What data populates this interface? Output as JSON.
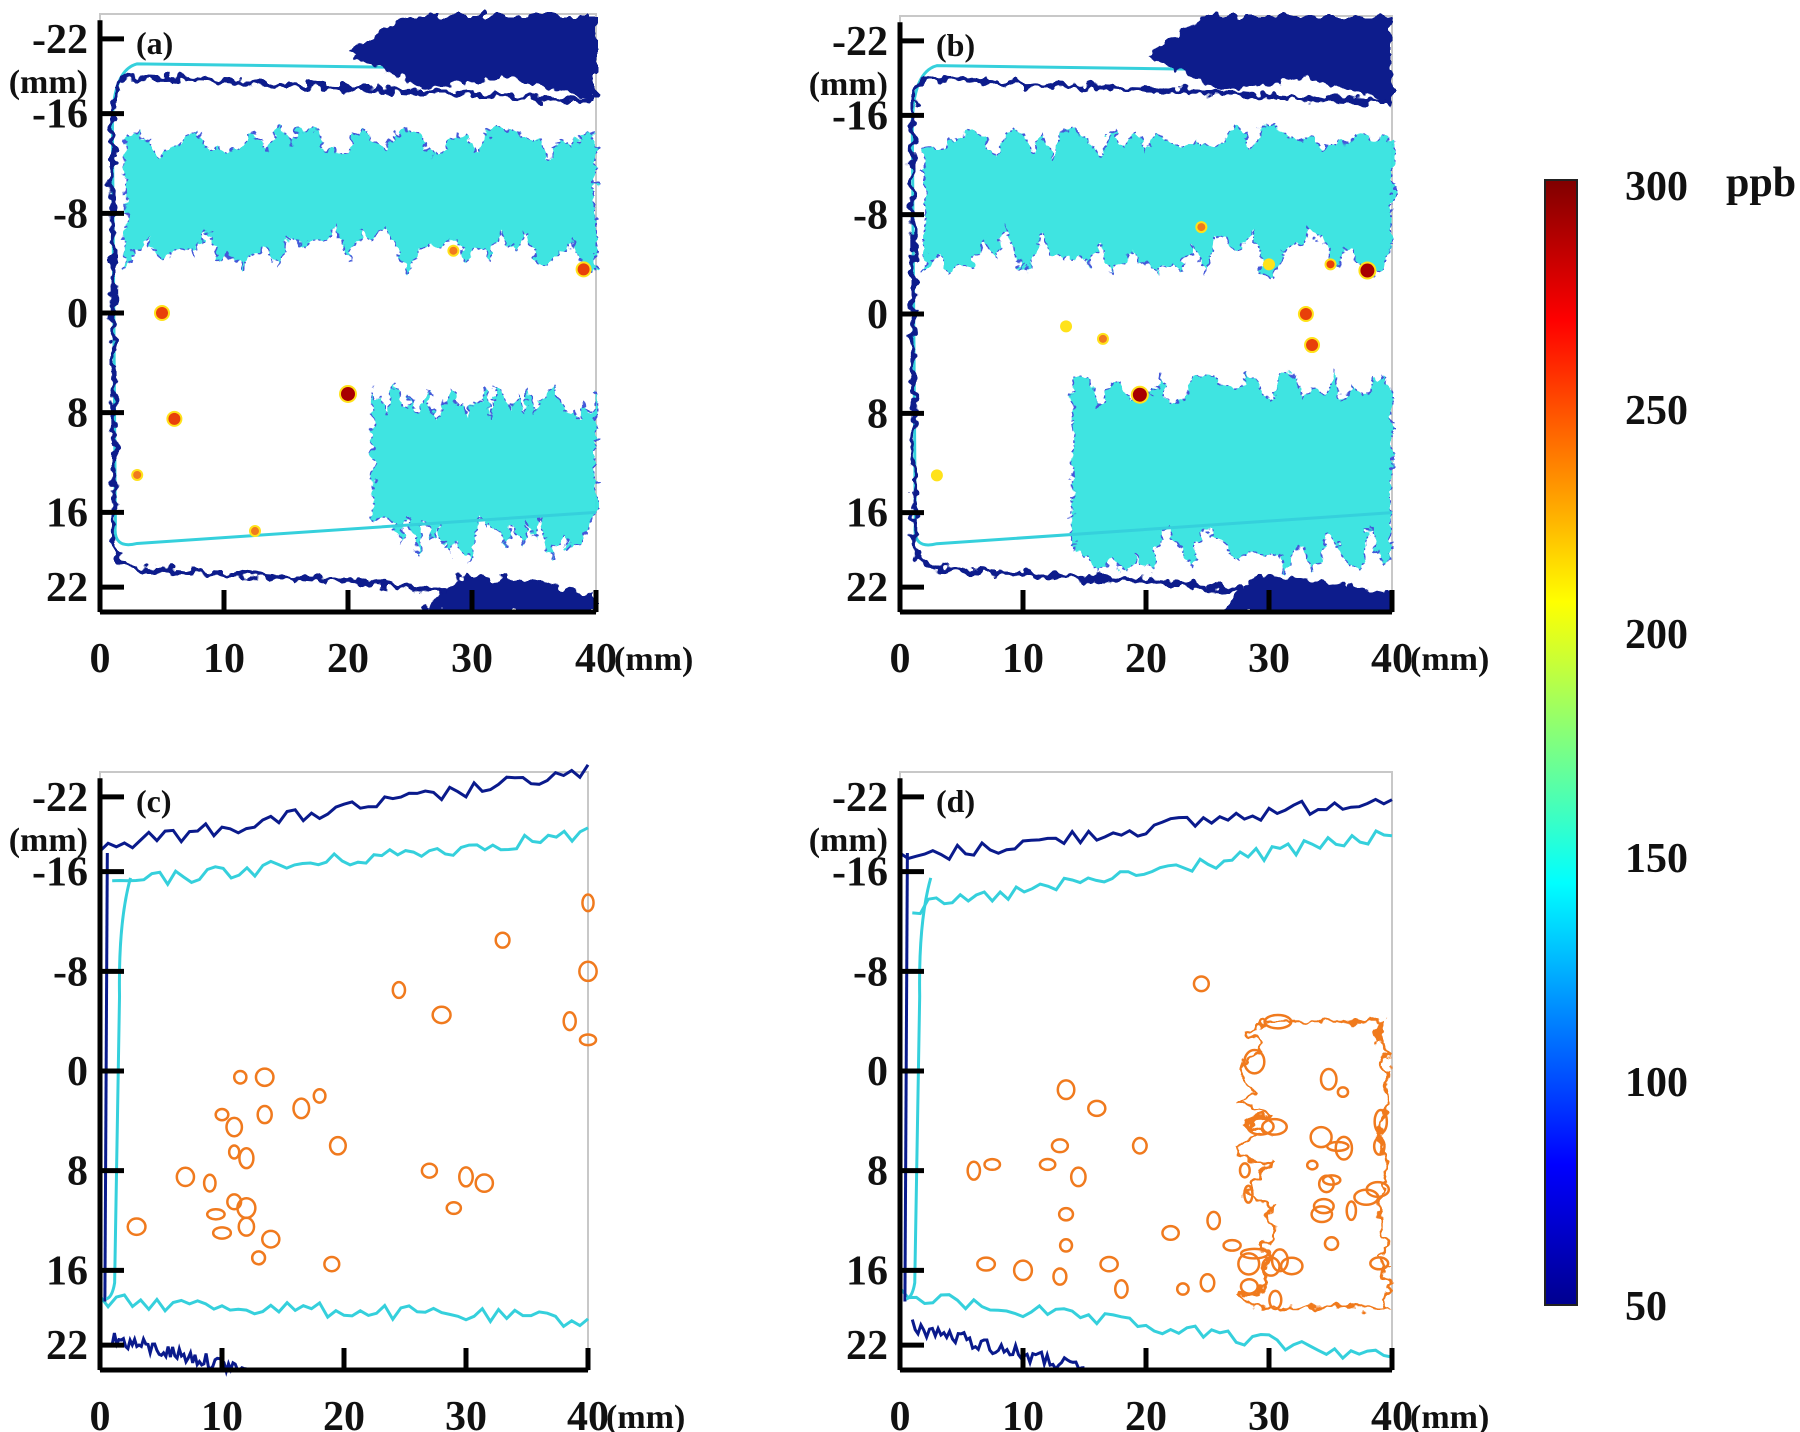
{
  "chart_data": [
    {
      "panel": "(a)",
      "type": "heatmap",
      "xlabel_unit": "(mm)",
      "ylabel_unit": "(mm)",
      "x_ticks": [
        0,
        10,
        20,
        30,
        40
      ],
      "y_ticks": [
        -22,
        -16,
        -8,
        0,
        8,
        16,
        22
      ],
      "xlim": [
        0,
        40
      ],
      "ylim": [
        -24,
        24
      ],
      "y_direction": "down",
      "regions": [
        {
          "band": "boundary",
          "level": 50,
          "x": [
            1,
            40
          ],
          "y": [
            -22,
            22
          ]
        },
        {
          "band": "upper",
          "level": 150,
          "x": [
            2,
            40
          ],
          "y_from": -14,
          "y_to": -5
        },
        {
          "band": "lower",
          "level": 150,
          "x": [
            22,
            40
          ],
          "y_from": 7,
          "y_to": 18
        }
      ],
      "hotspots": [
        {
          "x": 5,
          "y": 0,
          "value": 260
        },
        {
          "x": 6,
          "y": 8.5,
          "value": 270
        },
        {
          "x": 20,
          "y": 6.5,
          "value": 290
        },
        {
          "x": 39,
          "y": -3.5,
          "value": 260
        },
        {
          "x": 28.5,
          "y": -5,
          "value": 250
        },
        {
          "x": 12.5,
          "y": 17.5,
          "value": 250
        },
        {
          "x": 3,
          "y": 13,
          "value": 250
        }
      ]
    },
    {
      "panel": "(b)",
      "type": "heatmap",
      "xlabel_unit": "(mm)",
      "ylabel_unit": "(mm)",
      "x_ticks": [
        0,
        10,
        20,
        30,
        40
      ],
      "y_ticks": [
        -22,
        -16,
        -8,
        0,
        8,
        16,
        22
      ],
      "xlim": [
        0,
        40
      ],
      "ylim": [
        -24,
        24
      ],
      "y_direction": "down",
      "regions": [
        {
          "band": "boundary",
          "level": 50,
          "x": [
            1,
            40
          ],
          "y": [
            -22,
            22
          ]
        },
        {
          "band": "upper",
          "level": 150,
          "x": [
            2,
            40
          ],
          "y_from": -14,
          "y_to": -5
        },
        {
          "band": "lower",
          "level": 150,
          "x": [
            14,
            40
          ],
          "y_from": 6,
          "y_to": 19
        }
      ],
      "hotspots": [
        {
          "x": 19.5,
          "y": 6.5,
          "value": 290
        },
        {
          "x": 33,
          "y": 0,
          "value": 265
        },
        {
          "x": 33.5,
          "y": 2.5,
          "value": 270
        },
        {
          "x": 35,
          "y": -4,
          "value": 255
        },
        {
          "x": 38,
          "y": -3.5,
          "value": 285
        },
        {
          "x": 30,
          "y": -4,
          "value": 240
        },
        {
          "x": 24.5,
          "y": -7,
          "value": 250
        },
        {
          "x": 16.5,
          "y": 2,
          "value": 250
        },
        {
          "x": 13.5,
          "y": 1,
          "value": 240
        },
        {
          "x": 3,
          "y": 13,
          "value": 240
        }
      ]
    },
    {
      "panel": "(c)",
      "type": "contour",
      "xlabel_unit": "(mm)",
      "ylabel_unit": "(mm)",
      "x_ticks": [
        0,
        10,
        20,
        30,
        40
      ],
      "y_ticks": [
        -22,
        -16,
        -8,
        0,
        8,
        16,
        22
      ],
      "xlim": [
        0,
        40
      ],
      "ylim": [
        -24,
        24
      ],
      "y_direction": "down",
      "contours": [
        {
          "level": 50,
          "line": "upper",
          "x": [
            0,
            40
          ],
          "y_start": -18,
          "y_end": -24
        },
        {
          "level": 150,
          "line": "upper",
          "x": [
            1,
            40
          ],
          "y_start": -15,
          "y_end": -19
        },
        {
          "level": 150,
          "line": "lower",
          "x": [
            0,
            40
          ],
          "y_start": 18.5,
          "y_end": 20
        },
        {
          "level": 50,
          "line": "lower",
          "x": [
            1,
            12
          ],
          "y_start": 21.5,
          "y_end": 24
        }
      ],
      "hotspots": [
        {
          "x": 11.5,
          "y": 0.5,
          "value": 240
        },
        {
          "x": 13.5,
          "y": 0.5,
          "value": 240
        },
        {
          "x": 10,
          "y": 3.5,
          "value": 240
        },
        {
          "x": 11,
          "y": 4.5,
          "value": 240
        },
        {
          "x": 13.5,
          "y": 3.5,
          "value": 240
        },
        {
          "x": 11,
          "y": 6.5,
          "value": 240
        },
        {
          "x": 12,
          "y": 7,
          "value": 240
        },
        {
          "x": 7,
          "y": 8.5,
          "value": 240
        },
        {
          "x": 9,
          "y": 9,
          "value": 240
        },
        {
          "x": 11,
          "y": 10.5,
          "value": 240
        },
        {
          "x": 12,
          "y": 11,
          "value": 240
        },
        {
          "x": 9.5,
          "y": 11.5,
          "value": 240
        },
        {
          "x": 10,
          "y": 13,
          "value": 240
        },
        {
          "x": 12,
          "y": 12.5,
          "value": 240
        },
        {
          "x": 14,
          "y": 13.5,
          "value": 240
        },
        {
          "x": 13,
          "y": 15,
          "value": 240
        },
        {
          "x": 3,
          "y": 12.5,
          "value": 240
        },
        {
          "x": 19.5,
          "y": 6,
          "value": 240
        },
        {
          "x": 18,
          "y": 2,
          "value": 240
        },
        {
          "x": 16.5,
          "y": 3,
          "value": 240
        },
        {
          "x": 27,
          "y": 8,
          "value": 240
        },
        {
          "x": 30,
          "y": 8.5,
          "value": 240
        },
        {
          "x": 31.5,
          "y": 9,
          "value": 240
        },
        {
          "x": 29,
          "y": 11,
          "value": 240
        },
        {
          "x": 28,
          "y": -4.5,
          "value": 240
        },
        {
          "x": 33,
          "y": -10.5,
          "value": 240
        },
        {
          "x": 40,
          "y": -13.5,
          "value": 240
        },
        {
          "x": 40,
          "y": -8,
          "value": 240
        },
        {
          "x": 38.5,
          "y": -4,
          "value": 240
        },
        {
          "x": 40,
          "y": -2.5,
          "value": 240
        },
        {
          "x": 24.5,
          "y": -6.5,
          "value": 240
        },
        {
          "x": 19,
          "y": 15.5,
          "value": 240
        }
      ]
    },
    {
      "panel": "(d)",
      "type": "contour",
      "xlabel_unit": "(mm)",
      "ylabel_unit": "(mm)",
      "x_ticks": [
        0,
        10,
        20,
        30,
        40
      ],
      "y_ticks": [
        -22,
        -16,
        -8,
        0,
        8,
        16,
        22
      ],
      "xlim": [
        0,
        40
      ],
      "ylim": [
        -24,
        24
      ],
      "y_direction": "down",
      "contours": [
        {
          "level": 50,
          "line": "upper",
          "x": [
            0,
            40
          ],
          "y_start": -17,
          "y_end": -22
        },
        {
          "level": 150,
          "line": "upper",
          "x": [
            1,
            40
          ],
          "y_start": -13,
          "y_end": -19
        },
        {
          "level": 150,
          "line": "lower",
          "x": [
            0,
            40
          ],
          "y_start": 18,
          "y_end": 23
        },
        {
          "level": 50,
          "line": "lower",
          "x": [
            1,
            15
          ],
          "y_start": 20.5,
          "y_end": 24
        }
      ],
      "hot_region": {
        "level": 240,
        "x": [
          28,
          40
        ],
        "y_from": -4,
        "y_to": 19
      },
      "hotspots": [
        {
          "x": 13,
          "y": 6,
          "value": 240
        },
        {
          "x": 12,
          "y": 7.5,
          "value": 240
        },
        {
          "x": 14.5,
          "y": 8.5,
          "value": 240
        },
        {
          "x": 6,
          "y": 8,
          "value": 240
        },
        {
          "x": 7.5,
          "y": 7.5,
          "value": 240
        },
        {
          "x": 13.5,
          "y": 11.5,
          "value": 240
        },
        {
          "x": 13.5,
          "y": 14,
          "value": 240
        },
        {
          "x": 13,
          "y": 16.5,
          "value": 240
        },
        {
          "x": 7,
          "y": 15.5,
          "value": 240
        },
        {
          "x": 10,
          "y": 16,
          "value": 240
        },
        {
          "x": 17,
          "y": 15.5,
          "value": 240
        },
        {
          "x": 18,
          "y": 17.5,
          "value": 240
        },
        {
          "x": 19.5,
          "y": 6,
          "value": 240
        },
        {
          "x": 16,
          "y": 3,
          "value": 240
        },
        {
          "x": 22,
          "y": 13,
          "value": 240
        },
        {
          "x": 23,
          "y": 17.5,
          "value": 240
        },
        {
          "x": 25,
          "y": 17,
          "value": 240
        },
        {
          "x": 25.5,
          "y": 12,
          "value": 240
        },
        {
          "x": 27,
          "y": 14,
          "value": 240
        },
        {
          "x": 24.5,
          "y": -7,
          "value": 240
        },
        {
          "x": 13.5,
          "y": 1.5,
          "value": 240
        }
      ]
    }
  ],
  "colorbar": {
    "unit": "ppb",
    "min": 50,
    "max": 300,
    "ticks": [
      "300",
      "250",
      "200",
      "150",
      "100",
      "50"
    ]
  },
  "colors": {
    "boundary": "#0a1a8c",
    "boundary_light": "#3a4fd8",
    "band": "#35e3e0",
    "band_line": "#35d0dc",
    "hot_contour": "#f07a1e",
    "hot": "#e8400a",
    "hot_core": "#a80000",
    "hot_edge": "#ffe21a"
  }
}
